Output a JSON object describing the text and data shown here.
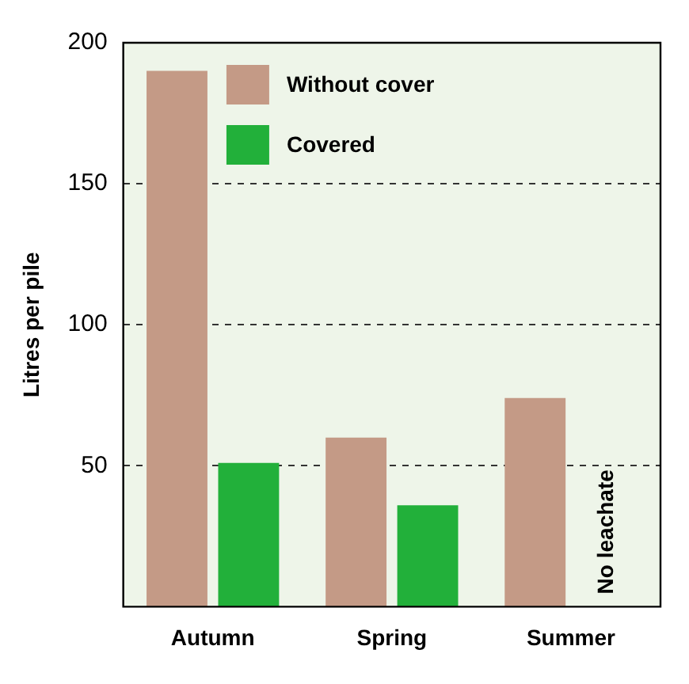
{
  "chart_data": {
    "type": "bar",
    "ylabel": "Litres per pile",
    "categories": [
      "Autumn",
      "Spring",
      "Summer"
    ],
    "series": [
      {
        "name": "Without cover",
        "color": "#c49a86",
        "values": [
          190,
          60,
          74
        ]
      },
      {
        "name": "Covered",
        "color": "#22b03a",
        "values": [
          51,
          36,
          null
        ]
      }
    ],
    "ylim": [
      0,
      200
    ],
    "yticks": [
      50,
      100,
      150,
      200
    ],
    "grid": "y",
    "legend": "top left",
    "annotations": [
      {
        "text": "No leachate",
        "x": "Summer",
        "y": 0
      }
    ]
  }
}
